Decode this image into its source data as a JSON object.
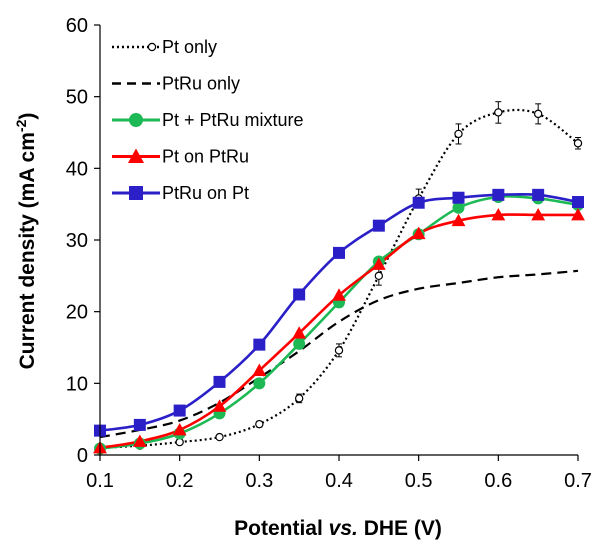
{
  "chart_data": {
    "type": "line",
    "title": "",
    "xlabel_parts": [
      "Potential ",
      "vs.",
      " DHE (V)"
    ],
    "ylabel_parts": [
      "Current density (mA cm",
      "-2",
      ")"
    ],
    "xlim": [
      0.1,
      0.7
    ],
    "ylim": [
      0,
      60
    ],
    "x_ticks": [
      "0.1",
      "0.2",
      "0.3",
      "0.4",
      "0.5",
      "0.6",
      "0.7"
    ],
    "y_ticks": [
      "0",
      "10",
      "20",
      "30",
      "40",
      "50",
      "60"
    ],
    "grid": false,
    "legend_position": "top-left",
    "series": [
      {
        "name": "Pt only",
        "color": "#000000",
        "line": "dotted",
        "marker": "open-circle",
        "error_bars": true,
        "x": [
          0.1,
          0.15,
          0.2,
          0.25,
          0.3,
          0.35,
          0.4,
          0.45,
          0.5,
          0.55,
          0.6,
          0.65,
          0.7
        ],
        "values": [
          1.0,
          1.3,
          1.8,
          2.5,
          4.3,
          7.9,
          14.6,
          25.0,
          35.8,
          44.8,
          47.8,
          47.6,
          43.5
        ],
        "errors": [
          0.2,
          0.2,
          0.2,
          0.3,
          0.4,
          0.6,
          0.9,
          1.3,
          1.3,
          1.4,
          1.5,
          1.4,
          0.8
        ]
      },
      {
        "name": "PtRu only",
        "color": "#000000",
        "line": "dashed",
        "marker": "none",
        "x": [
          0.1,
          0.15,
          0.2,
          0.25,
          0.3,
          0.35,
          0.4,
          0.45,
          0.5,
          0.55,
          0.6,
          0.65,
          0.7
        ],
        "values": [
          2.5,
          3.5,
          4.8,
          7.3,
          10.8,
          14.5,
          18.6,
          21.6,
          23.2,
          24.0,
          24.8,
          25.2,
          25.7
        ]
      },
      {
        "name": "Pt + PtRu mixture",
        "color": "#1db954",
        "line": "solid",
        "marker": "filled-circle",
        "x": [
          0.1,
          0.15,
          0.2,
          0.25,
          0.3,
          0.35,
          0.4,
          0.45,
          0.5,
          0.55,
          0.6,
          0.65,
          0.7
        ],
        "values": [
          0.9,
          1.6,
          3.0,
          5.8,
          10.0,
          15.5,
          21.3,
          27.0,
          30.8,
          34.5,
          36.0,
          35.8,
          34.9
        ]
      },
      {
        "name": "Pt on PtRu",
        "color": "#ff0000",
        "line": "solid",
        "marker": "filled-triangle",
        "x": [
          0.1,
          0.15,
          0.2,
          0.25,
          0.3,
          0.35,
          0.4,
          0.45,
          0.5,
          0.55,
          0.6,
          0.65,
          0.7
        ],
        "values": [
          1.0,
          1.9,
          3.5,
          6.8,
          11.8,
          17.0,
          22.3,
          26.6,
          30.9,
          32.7,
          33.5,
          33.5,
          33.5
        ]
      },
      {
        "name": "PtRu on Pt",
        "color": "#2b20c8",
        "line": "solid",
        "marker": "filled-square",
        "x": [
          0.1,
          0.15,
          0.2,
          0.25,
          0.3,
          0.35,
          0.4,
          0.45,
          0.5,
          0.55,
          0.6,
          0.65,
          0.7
        ],
        "values": [
          3.4,
          4.2,
          6.2,
          10.2,
          15.4,
          22.4,
          28.2,
          32.0,
          35.2,
          35.9,
          36.3,
          36.3,
          35.3
        ]
      }
    ]
  }
}
